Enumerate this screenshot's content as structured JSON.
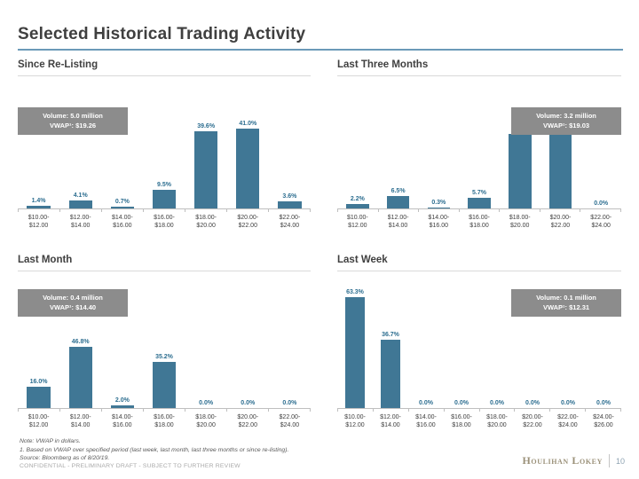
{
  "slide": {
    "title": "Selected Historical Trading Activity",
    "page_number": "10",
    "brand": "Houlihan Lokey",
    "footer": {
      "note": "Note: VWAP in dollars.",
      "footnote_1": "1.  Based on VWAP over specified period (last week, last month, last three months or since re-listing).",
      "source": "Source: Bloomberg as of 8/20/19.",
      "confidential": "CONFIDENTIAL - PRELIMINARY DRAFT - SUBJECT TO FURTHER REVIEW"
    },
    "colors": {
      "bar": "#407795",
      "value_label": "#2d6e90",
      "title_underline": "#6b9ab8",
      "info_box_bg": "#8c8c8c",
      "brand_gold": "#9b9179"
    }
  },
  "chart_data": [
    {
      "type": "bar",
      "title": "Since Re-Listing",
      "info_box": {
        "lines": [
          "Volume: 5.0 million",
          "VWAP¹: $19.26"
        ],
        "align": "left"
      },
      "categories": [
        "$10.00-$12.00",
        "$12.00-$14.00",
        "$14.00-$16.00",
        "$16.00-$18.00",
        "$18.00-$20.00",
        "$20.00-$22.00",
        "$22.00-$24.00"
      ],
      "values": [
        1.4,
        4.1,
        0.7,
        9.5,
        39.6,
        41.0,
        3.6
      ],
      "ylabel": "% of volume traded",
      "xlabel": "price range",
      "ylim": [
        0,
        52
      ],
      "grid": false,
      "legend": false,
      "value_label_format": "0.0%"
    },
    {
      "type": "bar",
      "title": "Last Three Months",
      "info_box": {
        "lines": [
          "Volume: 3.2 million",
          "VWAP¹: $19.03"
        ],
        "align": "right"
      },
      "categories": [
        "$10.00-$12.00",
        "$12.00-$14.00",
        "$14.00-$16.00",
        "$16.00-$18.00",
        "$18.00-$20.00",
        "$20.00-$22.00",
        "$22.00-$24.00"
      ],
      "values": [
        2.2,
        6.5,
        0.3,
        5.7,
        38.1,
        47.2,
        0.0
      ],
      "ylabel": "% of volume traded",
      "xlabel": "price range",
      "ylim": [
        0,
        52
      ],
      "grid": false,
      "legend": false,
      "value_label_format": "0.0%"
    },
    {
      "type": "bar",
      "title": "Last Month",
      "info_box": {
        "lines": [
          "Volume: 0.4 million",
          "VWAP¹: $14.40"
        ],
        "align": "left"
      },
      "categories": [
        "$10.00-$12.00",
        "$12.00-$14.00",
        "$14.00-$16.00",
        "$16.00-$18.00",
        "$18.00-$20.00",
        "$20.00-$22.00",
        "$22.00-$24.00"
      ],
      "values": [
        16.0,
        46.8,
        2.0,
        35.2,
        0.0,
        0.0,
        0.0
      ],
      "ylabel": "% of volume traded",
      "xlabel": "price range",
      "ylim": [
        0,
        91
      ],
      "grid": false,
      "legend": false,
      "value_label_format": "0.0%"
    },
    {
      "type": "bar",
      "title": "Last Week",
      "info_box": {
        "lines": [
          "Volume: 0.1 million",
          "VWAP¹: $12.31"
        ],
        "align": "right"
      },
      "categories": [
        "$10.00-$12.00",
        "$12.00-$14.00",
        "$14.00-$16.00",
        "$16.00-$18.00",
        "$18.00-$20.00",
        "$20.00-$22.00",
        "$22.00-$24.00",
        "$24.00-$26.00"
      ],
      "values": [
        63.3,
        36.7,
        0.0,
        0.0,
        0.0,
        0.0,
        0.0,
        0.0
      ],
      "ylabel": "% of volume traded",
      "xlabel": "price range",
      "ylim": [
        0,
        64
      ],
      "grid": false,
      "legend": false,
      "value_label_format": "0.0%"
    }
  ]
}
